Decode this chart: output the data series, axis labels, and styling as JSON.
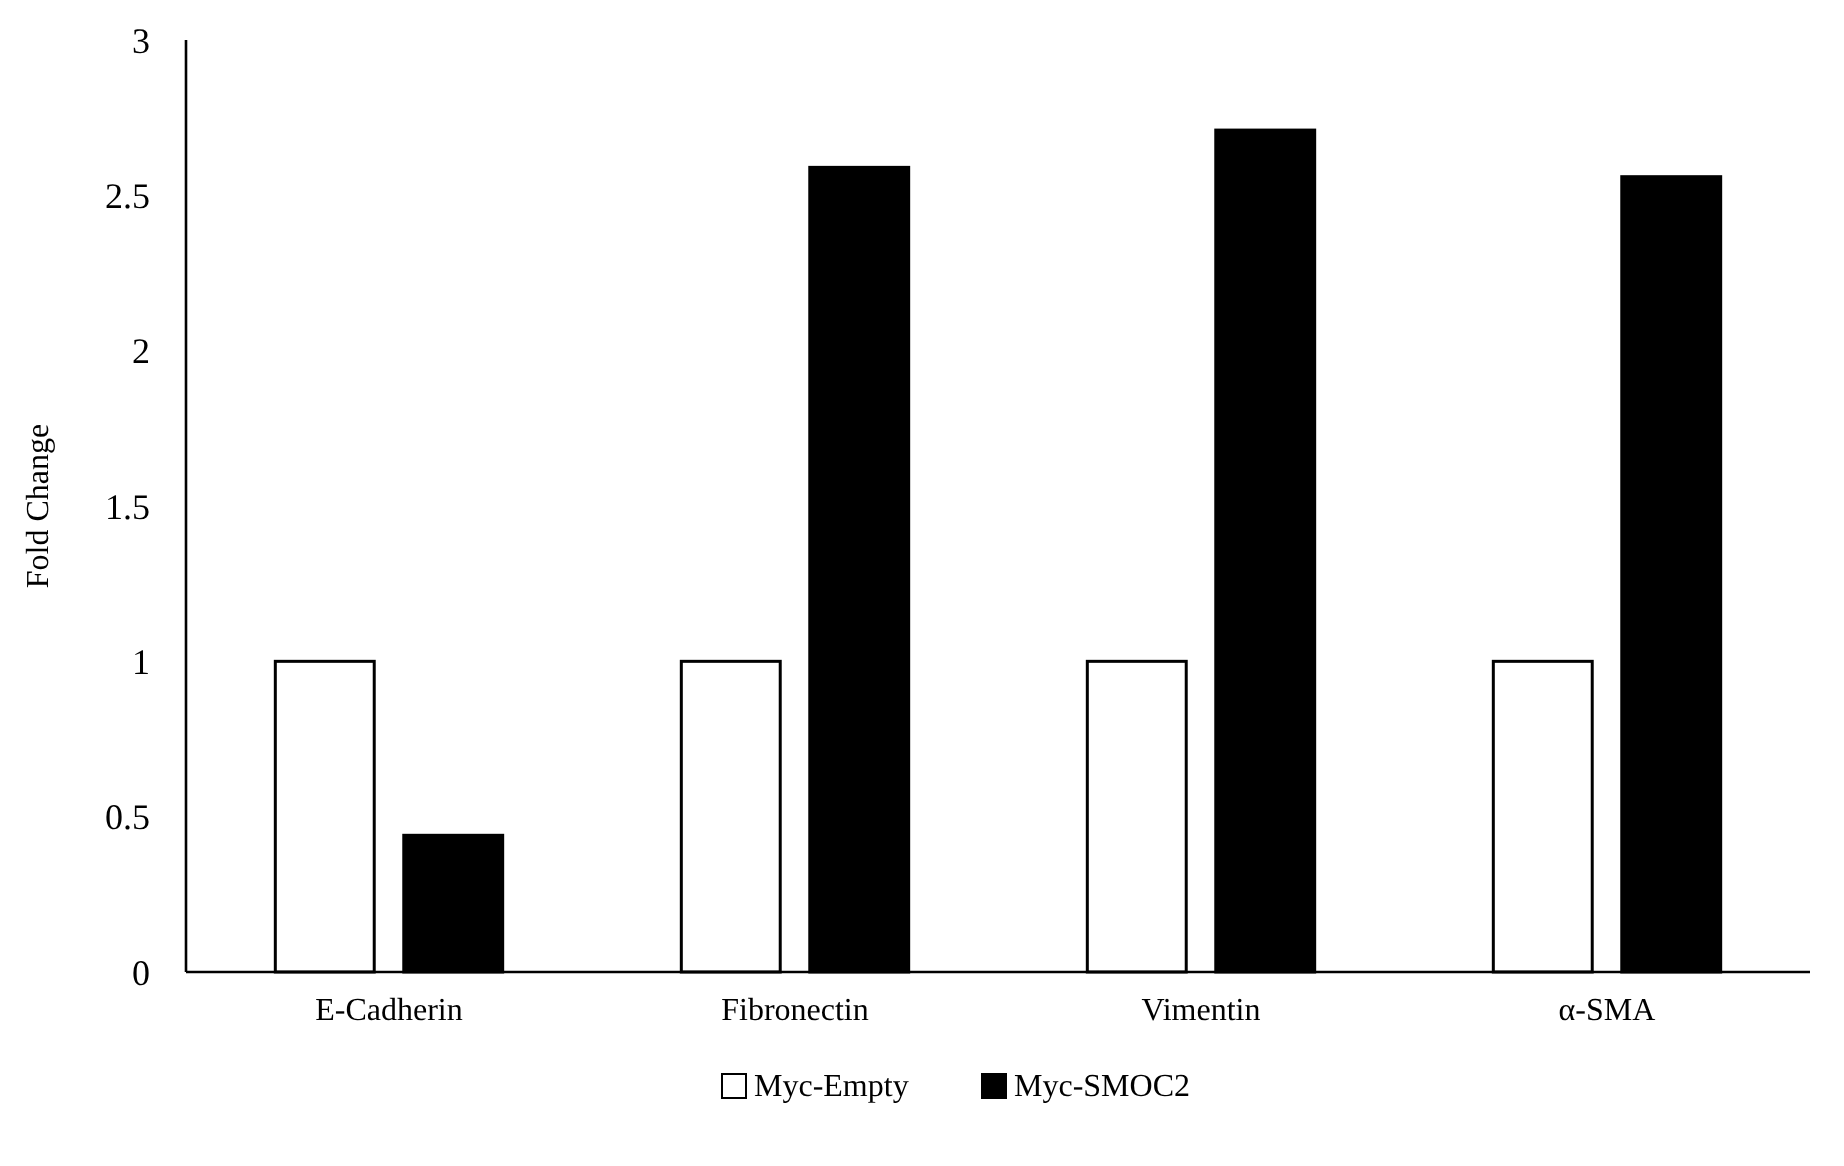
{
  "chart_data": {
    "type": "bar",
    "ylabel": "Fold Change",
    "categories": [
      "E-Cadherin",
      "Fibronectin",
      "Vimentin",
      "α-SMA"
    ],
    "series": [
      {
        "name": "Myc-Empty",
        "color": "#ffffff",
        "values": [
          1,
          1,
          1,
          1
        ]
      },
      {
        "name": "Myc-SMOC2",
        "color": "#000000",
        "values": [
          0.44,
          2.59,
          2.71,
          2.56
        ]
      }
    ],
    "ylim": [
      0,
      3
    ],
    "yticks": [
      0,
      0.5,
      1,
      1.5,
      2,
      2.5,
      3
    ],
    "grid": false,
    "legend": "bottom"
  }
}
